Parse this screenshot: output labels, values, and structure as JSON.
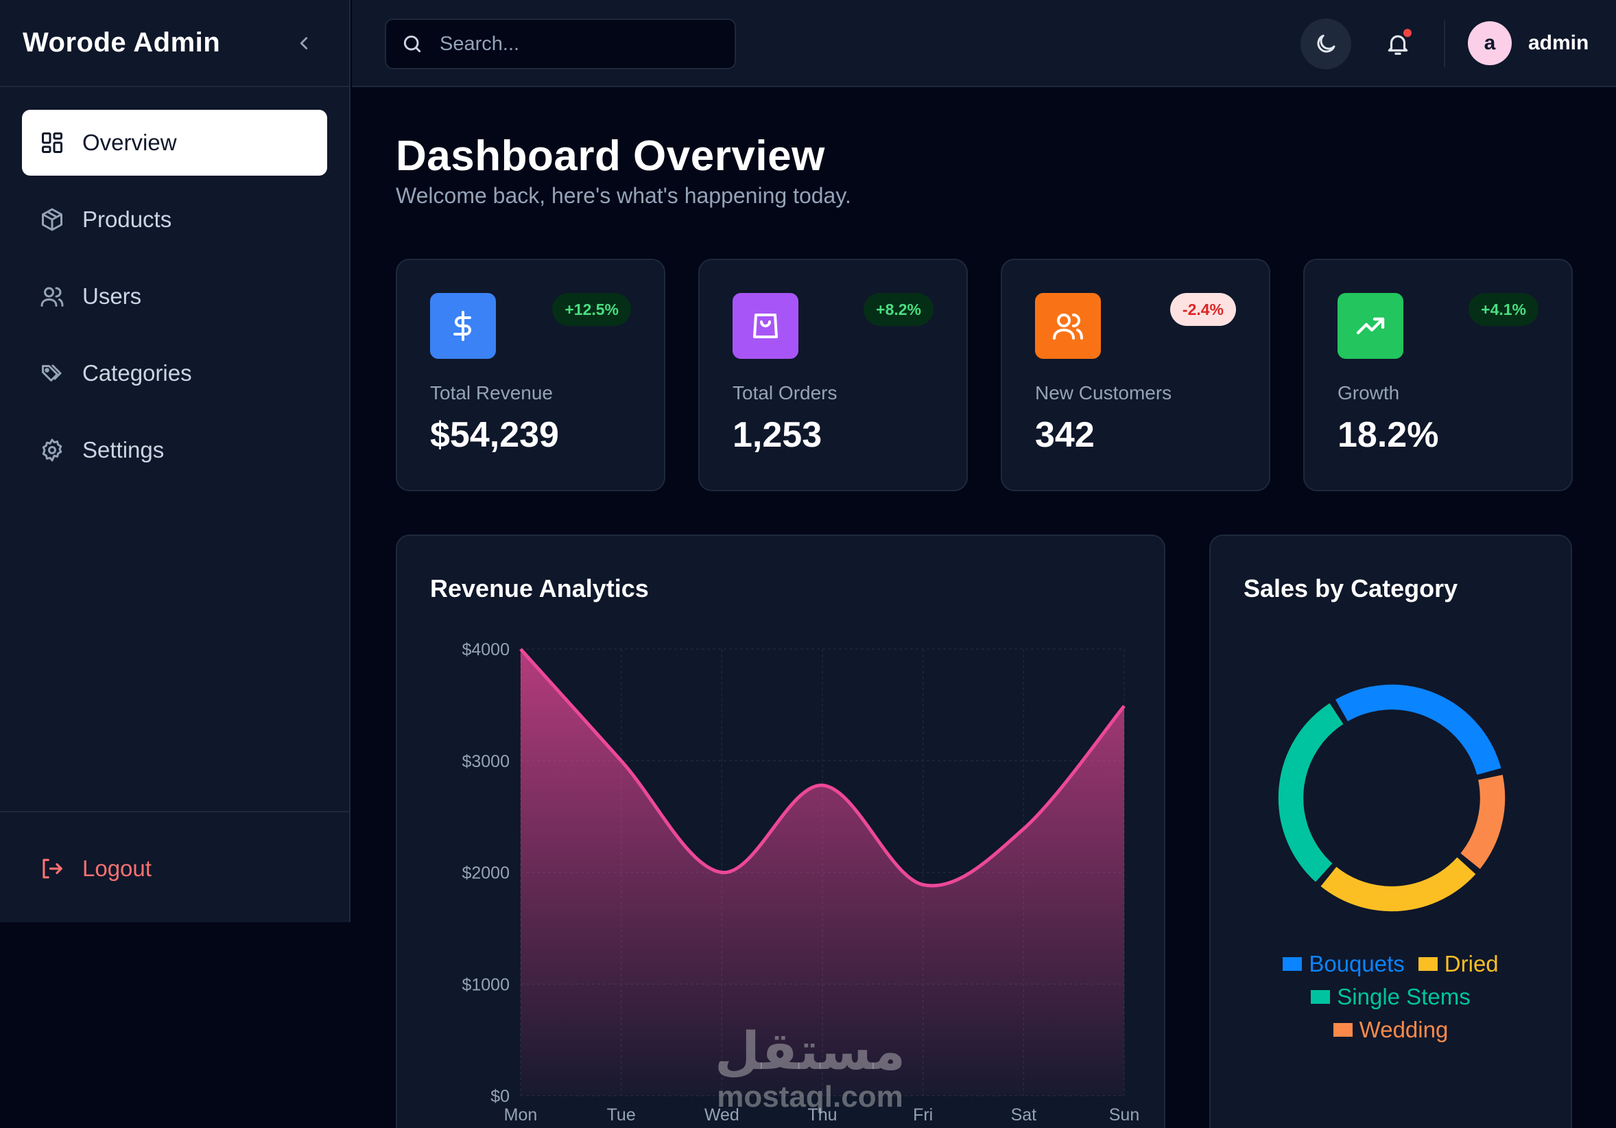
{
  "sidebar": {
    "brand": "Worode Admin",
    "items": [
      {
        "label": "Overview",
        "icon": "dashboard-icon",
        "active": true
      },
      {
        "label": "Products",
        "icon": "package-icon",
        "active": false
      },
      {
        "label": "Users",
        "icon": "users-icon",
        "active": false
      },
      {
        "label": "Categories",
        "icon": "tags-icon",
        "active": false
      },
      {
        "label": "Settings",
        "icon": "gear-icon",
        "active": false
      }
    ],
    "logout": "Logout"
  },
  "header": {
    "search_placeholder": "Search...",
    "username": "admin",
    "avatar_initial": "a",
    "notification_dot_color": "#ef4444"
  },
  "page": {
    "title": "Dashboard Overview",
    "subtitle": "Welcome back, here's what's happening today."
  },
  "stats": [
    {
      "label": "Total Revenue",
      "value": "$54,239",
      "change": "+12.5%",
      "trend": "up",
      "icon": "dollar-icon",
      "color": "#3b82f6"
    },
    {
      "label": "Total Orders",
      "value": "1,253",
      "change": "+8.2%",
      "trend": "up",
      "icon": "shopping-bag-icon",
      "color": "#a855f7"
    },
    {
      "label": "New Customers",
      "value": "342",
      "change": "-2.4%",
      "trend": "down",
      "icon": "users-icon",
      "color": "#f97316"
    },
    {
      "label": "Growth",
      "value": "18.2%",
      "change": "+4.1%",
      "trend": "up",
      "icon": "trending-up-icon",
      "color": "#22c55e"
    }
  ],
  "revenue": {
    "title": "Revenue Analytics"
  },
  "sales": {
    "title": "Sales by Category"
  },
  "chart_data": [
    {
      "type": "area",
      "title": "Revenue Analytics",
      "categories": [
        "Mon",
        "Tue",
        "Wed",
        "Thu",
        "Fri",
        "Sat",
        "Sun"
      ],
      "values": [
        4000,
        3000,
        2000,
        2780,
        1890,
        2390,
        3490
      ],
      "y_ticks": [
        "$0",
        "$1000",
        "$2000",
        "$3000",
        "$4000"
      ],
      "ylim": [
        0,
        4000
      ],
      "color": "#ec4899",
      "grid": true
    },
    {
      "type": "pie",
      "title": "Sales by Category",
      "donut": true,
      "slices": [
        {
          "name": "Bouquets",
          "value": 30,
          "color": "#0b84ff"
        },
        {
          "name": "Wedding",
          "value": 15,
          "color": "#fb8a4a"
        },
        {
          "name": "Dried",
          "value": 25,
          "color": "#fbbf24"
        },
        {
          "name": "Single Stems",
          "value": 30,
          "color": "#00c49f"
        }
      ],
      "legend": [
        {
          "name": "Bouquets",
          "color": "#0b84ff"
        },
        {
          "name": "Dried",
          "color": "#fbbf24"
        },
        {
          "name": "Single Stems",
          "color": "#00c49f"
        },
        {
          "name": "Wedding",
          "color": "#fb8a4a"
        }
      ],
      "legend_position": "bottom"
    }
  ],
  "watermark": {
    "arabic": "مستقل",
    "latin": "mostaql.com"
  }
}
